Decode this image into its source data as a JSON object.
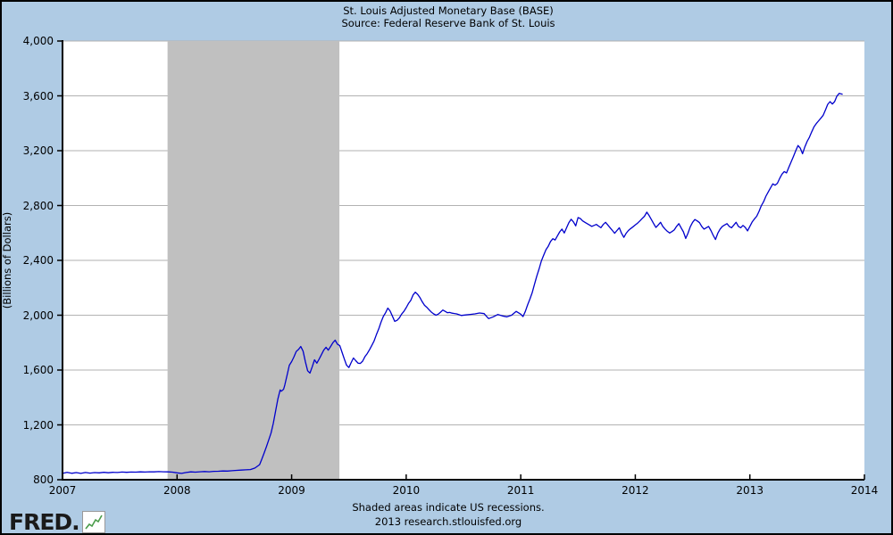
{
  "header": {
    "title": "St. Louis Adjusted Monetary Base (BASE)",
    "subtitle": "Source: Federal Reserve Bank of St. Louis"
  },
  "footer": {
    "note": "Shaded areas indicate US recessions.",
    "credit": "2013 research.stlouisfed.org",
    "logo_text": "FRED",
    "logo_dot": "."
  },
  "colors": {
    "background": "#afcbe4",
    "plot_background": "#ffffff",
    "line": "#0000cc",
    "recession_band": "#c0c0c0",
    "gridline": "#b2b2b2",
    "axis": "#000000",
    "logo_icon_line": "#4a9c4a"
  },
  "chart_data": {
    "type": "line",
    "title": "St. Louis Adjusted Monetary Base (BASE)",
    "subtitle": "Source: Federal Reserve Bank of St. Louis",
    "xlabel": "",
    "ylabel": "(Billions of Dollars)",
    "xlim": [
      2007,
      2014
    ],
    "ylim": [
      800,
      4000
    ],
    "grid": "horizontal",
    "legend_position": "none",
    "yticks": [
      800,
      1200,
      1600,
      2000,
      2400,
      2800,
      3200,
      3600,
      4000
    ],
    "ytick_labels": [
      "800",
      "1,200",
      "1,600",
      "2,000",
      "2,400",
      "2,800",
      "3,200",
      "3,600",
      "4,000"
    ],
    "xticks": [
      2007,
      2008,
      2009,
      2010,
      2011,
      2012,
      2013,
      2014
    ],
    "xtick_labels": [
      "2007",
      "2008",
      "2009",
      "2010",
      "2011",
      "2012",
      "2013",
      "2014"
    ],
    "recession_bands": [
      [
        2007.917,
        2009.417
      ]
    ],
    "series": [
      {
        "name": "St. Louis Adjusted Monetary Base",
        "units": "Billions of Dollars",
        "points": [
          [
            2007.0,
            846
          ],
          [
            2007.04,
            854
          ],
          [
            2007.08,
            847
          ],
          [
            2007.12,
            852
          ],
          [
            2007.16,
            846
          ],
          [
            2007.2,
            853
          ],
          [
            2007.24,
            848
          ],
          [
            2007.28,
            852
          ],
          [
            2007.32,
            850
          ],
          [
            2007.36,
            854
          ],
          [
            2007.4,
            851
          ],
          [
            2007.44,
            854
          ],
          [
            2007.48,
            853
          ],
          [
            2007.52,
            856
          ],
          [
            2007.56,
            854
          ],
          [
            2007.6,
            856
          ],
          [
            2007.64,
            855
          ],
          [
            2007.68,
            857
          ],
          [
            2007.72,
            856
          ],
          [
            2007.76,
            858
          ],
          [
            2007.8,
            857
          ],
          [
            2007.84,
            859
          ],
          [
            2007.88,
            858
          ],
          [
            2007.92,
            857
          ],
          [
            2007.96,
            855
          ],
          [
            2008.0,
            850
          ],
          [
            2008.04,
            846
          ],
          [
            2008.08,
            853
          ],
          [
            2008.12,
            857
          ],
          [
            2008.16,
            855
          ],
          [
            2008.2,
            858
          ],
          [
            2008.24,
            860
          ],
          [
            2008.28,
            858
          ],
          [
            2008.32,
            861
          ],
          [
            2008.36,
            862
          ],
          [
            2008.4,
            864
          ],
          [
            2008.44,
            863
          ],
          [
            2008.48,
            866
          ],
          [
            2008.52,
            868
          ],
          [
            2008.56,
            870
          ],
          [
            2008.6,
            872
          ],
          [
            2008.64,
            874
          ],
          [
            2008.68,
            885
          ],
          [
            2008.72,
            910
          ],
          [
            2008.74,
            950
          ],
          [
            2008.76,
            995
          ],
          [
            2008.78,
            1040
          ],
          [
            2008.8,
            1090
          ],
          [
            2008.82,
            1140
          ],
          [
            2008.84,
            1210
          ],
          [
            2008.86,
            1300
          ],
          [
            2008.88,
            1390
          ],
          [
            2008.9,
            1455
          ],
          [
            2008.91,
            1445
          ],
          [
            2008.93,
            1460
          ],
          [
            2008.94,
            1490
          ],
          [
            2008.96,
            1560
          ],
          [
            2008.98,
            1635
          ],
          [
            2009.0,
            1662
          ],
          [
            2009.02,
            1695
          ],
          [
            2009.04,
            1735
          ],
          [
            2009.06,
            1750
          ],
          [
            2009.08,
            1772
          ],
          [
            2009.1,
            1738
          ],
          [
            2009.12,
            1660
          ],
          [
            2009.14,
            1595
          ],
          [
            2009.16,
            1578
          ],
          [
            2009.18,
            1625
          ],
          [
            2009.2,
            1675
          ],
          [
            2009.22,
            1650
          ],
          [
            2009.24,
            1680
          ],
          [
            2009.26,
            1712
          ],
          [
            2009.28,
            1745
          ],
          [
            2009.3,
            1766
          ],
          [
            2009.32,
            1745
          ],
          [
            2009.34,
            1772
          ],
          [
            2009.36,
            1800
          ],
          [
            2009.38,
            1818
          ],
          [
            2009.4,
            1788
          ],
          [
            2009.42,
            1778
          ],
          [
            2009.44,
            1730
          ],
          [
            2009.46,
            1680
          ],
          [
            2009.48,
            1635
          ],
          [
            2009.5,
            1618
          ],
          [
            2009.52,
            1655
          ],
          [
            2009.54,
            1688
          ],
          [
            2009.56,
            1668
          ],
          [
            2009.58,
            1650
          ],
          [
            2009.6,
            1648
          ],
          [
            2009.62,
            1665
          ],
          [
            2009.64,
            1698
          ],
          [
            2009.66,
            1720
          ],
          [
            2009.68,
            1748
          ],
          [
            2009.7,
            1780
          ],
          [
            2009.72,
            1812
          ],
          [
            2009.74,
            1858
          ],
          [
            2009.76,
            1900
          ],
          [
            2009.78,
            1948
          ],
          [
            2009.8,
            1990
          ],
          [
            2009.82,
            2018
          ],
          [
            2009.84,
            2052
          ],
          [
            2009.86,
            2030
          ],
          [
            2009.88,
            1992
          ],
          [
            2009.9,
            1955
          ],
          [
            2009.92,
            1962
          ],
          [
            2009.94,
            1980
          ],
          [
            2009.96,
            2008
          ],
          [
            2009.98,
            2028
          ],
          [
            2010.0,
            2055
          ],
          [
            2010.02,
            2085
          ],
          [
            2010.04,
            2108
          ],
          [
            2010.06,
            2148
          ],
          [
            2010.08,
            2168
          ],
          [
            2010.1,
            2152
          ],
          [
            2010.12,
            2128
          ],
          [
            2010.14,
            2098
          ],
          [
            2010.16,
            2072
          ],
          [
            2010.18,
            2058
          ],
          [
            2010.2,
            2040
          ],
          [
            2010.22,
            2022
          ],
          [
            2010.24,
            2010
          ],
          [
            2010.26,
            2000
          ],
          [
            2010.28,
            2008
          ],
          [
            2010.3,
            2022
          ],
          [
            2010.32,
            2038
          ],
          [
            2010.34,
            2028
          ],
          [
            2010.36,
            2018
          ],
          [
            2010.38,
            2020
          ],
          [
            2010.4,
            2015
          ],
          [
            2010.44,
            2010
          ],
          [
            2010.48,
            1998
          ],
          [
            2010.52,
            2002
          ],
          [
            2010.56,
            2006
          ],
          [
            2010.6,
            2010
          ],
          [
            2010.64,
            2016
          ],
          [
            2010.68,
            2012
          ],
          [
            2010.7,
            1992
          ],
          [
            2010.72,
            1975
          ],
          [
            2010.76,
            1988
          ],
          [
            2010.8,
            2005
          ],
          [
            2010.84,
            1995
          ],
          [
            2010.88,
            1988
          ],
          [
            2010.92,
            2000
          ],
          [
            2010.96,
            2028
          ],
          [
            2011.0,
            2008
          ],
          [
            2011.02,
            1990
          ],
          [
            2011.04,
            2028
          ],
          [
            2011.06,
            2075
          ],
          [
            2011.08,
            2118
          ],
          [
            2011.1,
            2165
          ],
          [
            2011.12,
            2225
          ],
          [
            2011.14,
            2285
          ],
          [
            2011.16,
            2338
          ],
          [
            2011.18,
            2395
          ],
          [
            2011.2,
            2438
          ],
          [
            2011.22,
            2478
          ],
          [
            2011.24,
            2502
          ],
          [
            2011.26,
            2538
          ],
          [
            2011.28,
            2558
          ],
          [
            2011.3,
            2548
          ],
          [
            2011.32,
            2578
          ],
          [
            2011.34,
            2608
          ],
          [
            2011.36,
            2628
          ],
          [
            2011.38,
            2600
          ],
          [
            2011.4,
            2638
          ],
          [
            2011.42,
            2675
          ],
          [
            2011.44,
            2700
          ],
          [
            2011.46,
            2680
          ],
          [
            2011.48,
            2652
          ],
          [
            2011.5,
            2712
          ],
          [
            2011.52,
            2705
          ],
          [
            2011.54,
            2688
          ],
          [
            2011.56,
            2678
          ],
          [
            2011.58,
            2668
          ],
          [
            2011.6,
            2658
          ],
          [
            2011.62,
            2648
          ],
          [
            2011.64,
            2655
          ],
          [
            2011.66,
            2662
          ],
          [
            2011.68,
            2650
          ],
          [
            2011.7,
            2638
          ],
          [
            2011.72,
            2662
          ],
          [
            2011.74,
            2678
          ],
          [
            2011.76,
            2658
          ],
          [
            2011.78,
            2638
          ],
          [
            2011.8,
            2618
          ],
          [
            2011.82,
            2598
          ],
          [
            2011.84,
            2618
          ],
          [
            2011.86,
            2638
          ],
          [
            2011.88,
            2598
          ],
          [
            2011.9,
            2568
          ],
          [
            2011.92,
            2598
          ],
          [
            2011.94,
            2618
          ],
          [
            2011.96,
            2632
          ],
          [
            2011.98,
            2645
          ],
          [
            2012.0,
            2658
          ],
          [
            2012.02,
            2672
          ],
          [
            2012.04,
            2688
          ],
          [
            2012.06,
            2705
          ],
          [
            2012.08,
            2722
          ],
          [
            2012.1,
            2752
          ],
          [
            2012.12,
            2728
          ],
          [
            2012.14,
            2698
          ],
          [
            2012.16,
            2668
          ],
          [
            2012.18,
            2640
          ],
          [
            2012.2,
            2658
          ],
          [
            2012.22,
            2678
          ],
          [
            2012.24,
            2648
          ],
          [
            2012.26,
            2628
          ],
          [
            2012.28,
            2612
          ],
          [
            2012.3,
            2600
          ],
          [
            2012.32,
            2610
          ],
          [
            2012.34,
            2622
          ],
          [
            2012.36,
            2648
          ],
          [
            2012.38,
            2668
          ],
          [
            2012.4,
            2638
          ],
          [
            2012.42,
            2608
          ],
          [
            2012.44,
            2560
          ],
          [
            2012.46,
            2598
          ],
          [
            2012.48,
            2645
          ],
          [
            2012.5,
            2678
          ],
          [
            2012.52,
            2698
          ],
          [
            2012.54,
            2688
          ],
          [
            2012.56,
            2675
          ],
          [
            2012.58,
            2648
          ],
          [
            2012.6,
            2628
          ],
          [
            2012.62,
            2638
          ],
          [
            2012.64,
            2648
          ],
          [
            2012.66,
            2618
          ],
          [
            2012.68,
            2582
          ],
          [
            2012.7,
            2552
          ],
          [
            2012.72,
            2598
          ],
          [
            2012.74,
            2628
          ],
          [
            2012.76,
            2648
          ],
          [
            2012.78,
            2658
          ],
          [
            2012.8,
            2668
          ],
          [
            2012.82,
            2648
          ],
          [
            2012.84,
            2638
          ],
          [
            2012.86,
            2658
          ],
          [
            2012.88,
            2678
          ],
          [
            2012.9,
            2648
          ],
          [
            2012.92,
            2638
          ],
          [
            2012.94,
            2655
          ],
          [
            2012.96,
            2640
          ],
          [
            2012.98,
            2615
          ],
          [
            2013.0,
            2648
          ],
          [
            2013.02,
            2680
          ],
          [
            2013.04,
            2702
          ],
          [
            2013.06,
            2722
          ],
          [
            2013.08,
            2758
          ],
          [
            2013.1,
            2798
          ],
          [
            2013.12,
            2828
          ],
          [
            2013.14,
            2868
          ],
          [
            2013.16,
            2898
          ],
          [
            2013.18,
            2928
          ],
          [
            2013.2,
            2958
          ],
          [
            2013.22,
            2948
          ],
          [
            2013.24,
            2962
          ],
          [
            2013.26,
            2998
          ],
          [
            2013.28,
            3028
          ],
          [
            2013.3,
            3048
          ],
          [
            2013.32,
            3038
          ],
          [
            2013.34,
            3078
          ],
          [
            2013.36,
            3118
          ],
          [
            2013.38,
            3158
          ],
          [
            2013.4,
            3198
          ],
          [
            2013.42,
            3238
          ],
          [
            2013.44,
            3218
          ],
          [
            2013.46,
            3178
          ],
          [
            2013.48,
            3228
          ],
          [
            2013.5,
            3268
          ],
          [
            2013.52,
            3298
          ],
          [
            2013.54,
            3338
          ],
          [
            2013.56,
            3375
          ],
          [
            2013.58,
            3398
          ],
          [
            2013.6,
            3418
          ],
          [
            2013.62,
            3438
          ],
          [
            2013.64,
            3458
          ],
          [
            2013.66,
            3498
          ],
          [
            2013.68,
            3538
          ],
          [
            2013.7,
            3558
          ],
          [
            2013.72,
            3540
          ],
          [
            2013.74,
            3558
          ],
          [
            2013.76,
            3598
          ],
          [
            2013.78,
            3618
          ],
          [
            2013.81,
            3612
          ]
        ]
      }
    ]
  }
}
